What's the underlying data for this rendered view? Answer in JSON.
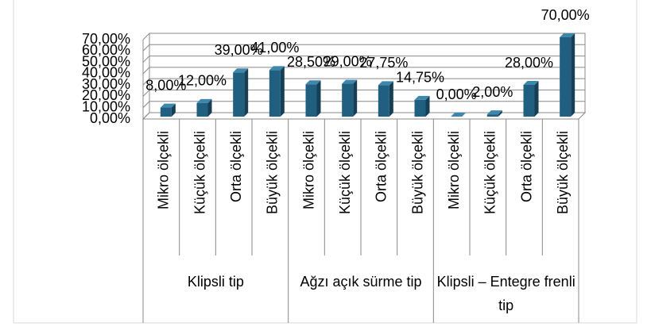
{
  "chart_data": {
    "type": "bar3d",
    "groups": [
      {
        "name": "Klipsli tip",
        "categories": [
          "Mikro ölçekli",
          "Küçük ölçekli",
          "Orta ölçekli",
          "Büyük ölçekli"
        ],
        "values": [
          8,
          12,
          39,
          41
        ],
        "value_labels": [
          "8,00%",
          "12,00%",
          "39,00%",
          "41,00%"
        ]
      },
      {
        "name": "Ağzı açık sürme tip",
        "categories": [
          "Mikro ölçekli",
          "Küçük ölçekli",
          "Orta ölçekli",
          "Büyük ölçekli"
        ],
        "values": [
          28.5,
          29,
          27.75,
          14.75
        ],
        "value_labels": [
          "28,50%",
          "29,00%",
          "27,75%",
          "14,75%"
        ]
      },
      {
        "name": "Klipsli – Entegre frenli tip",
        "categories": [
          "Mikro ölçekli",
          "Küçük ölçekli",
          "Orta ölçekli",
          "Büyük ölçekli"
        ],
        "values": [
          0,
          2,
          28,
          70
        ],
        "value_labels": [
          "0,00%",
          "2,00%",
          "28,00%",
          "70,00%"
        ]
      }
    ],
    "color": "#215f80",
    "ylim": [
      0,
      70
    ],
    "yticks": [
      {
        "value": 0,
        "label": "0,00%"
      },
      {
        "value": 10,
        "label": "10,00%"
      },
      {
        "value": 20,
        "label": "20,00%"
      },
      {
        "value": 30,
        "label": "30,00%"
      },
      {
        "value": 40,
        "label": "40,00%"
      },
      {
        "value": 50,
        "label": "50,00%"
      },
      {
        "value": 60,
        "label": "60,00%"
      },
      {
        "value": 70,
        "label": "70,00%"
      }
    ],
    "grid": true
  }
}
